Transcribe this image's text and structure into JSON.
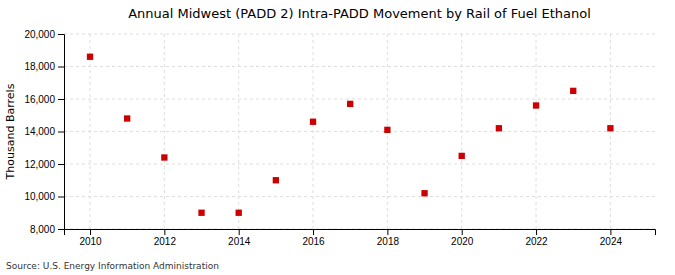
{
  "chart_data": {
    "type": "scatter",
    "title": "Annual Midwest (PADD 2) Intra-PADD Movement by Rail of Fuel Ethanol",
    "ylabel": "Thousand Barrels",
    "annotations": [
      "Source: U.S. Energy Information Administration"
    ],
    "x": [
      2010,
      2011,
      2012,
      2013,
      2014,
      2015,
      2016,
      2017,
      2018,
      2019,
      2020,
      2021,
      2022,
      2023,
      2024
    ],
    "values": [
      18600,
      14800,
      12400,
      9000,
      9000,
      11000,
      14600,
      15700,
      14100,
      10200,
      12500,
      14200,
      15600,
      16500,
      14200
    ],
    "color": "#cc0000",
    "marker": "square",
    "xlim": [
      2009.3,
      2025.2
    ],
    "ylim": [
      8000,
      20000
    ],
    "xticks": [
      2010,
      2012,
      2014,
      2016,
      2018,
      2020,
      2022,
      2024
    ],
    "yticks": [
      {
        "value": 8000,
        "label": "8,000"
      },
      {
        "value": 10000,
        "label": "10,000"
      },
      {
        "value": 12000,
        "label": "12,000"
      },
      {
        "value": 14000,
        "label": "14,000"
      },
      {
        "value": 16000,
        "label": "16,000"
      },
      {
        "value": 18000,
        "label": "18,000"
      },
      {
        "value": 20000,
        "label": "20,000"
      }
    ],
    "grid": true
  }
}
